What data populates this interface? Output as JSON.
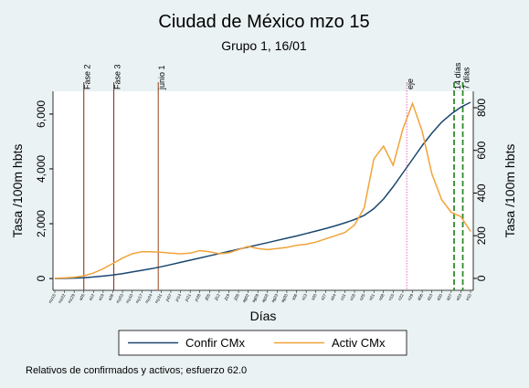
{
  "chart_data": {
    "type": "line",
    "title": "Ciudad de México mzo 15",
    "subtitle": "Grupo 1,  16/01",
    "xlabel": "Días",
    "ylabel": "Tasa /100m hbts",
    "y2label": "Tasa /100m hbts",
    "note": "Relativos de confirmados y activos; esfuerzo 62.0",
    "categories": [
      "mz15",
      "mz22",
      "mz29",
      "a05",
      "a12",
      "a19",
      "a26",
      "my03",
      "my10",
      "my17",
      "my24",
      "my31",
      "jn07",
      "jn14",
      "jn21",
      "jn28",
      "jl05",
      "jl12",
      "jl19",
      "jl26",
      "ag02",
      "ag09",
      "ag16",
      "ag23",
      "ag30",
      "s06",
      "s13",
      "s20",
      "s27",
      "o04",
      "o11",
      "o18",
      "o25",
      "n01",
      "n08",
      "n15",
      "n22",
      "n29",
      "d06",
      "d13",
      "d20",
      "d27",
      "e03",
      "e10"
    ],
    "series": [
      {
        "name": "Confir CMx",
        "color": "#1a476f",
        "axis": "y",
        "values": [
          0,
          5,
          15,
          30,
          55,
          90,
          130,
          180,
          240,
          300,
          360,
          430,
          510,
          590,
          670,
          750,
          830,
          910,
          990,
          1070,
          1150,
          1230,
          1310,
          1390,
          1470,
          1550,
          1640,
          1730,
          1820,
          1920,
          2030,
          2150,
          2300,
          2550,
          2900,
          3350,
          3850,
          4350,
          4850,
          5300,
          5700,
          6000,
          6250,
          6430
        ]
      },
      {
        "name": "Activ CMx",
        "color": "#f2a33a",
        "axis": "y2",
        "values": [
          0,
          2,
          5,
          12,
          25,
          45,
          70,
          95,
          115,
          125,
          125,
          122,
          118,
          115,
          118,
          130,
          125,
          115,
          120,
          135,
          150,
          140,
          135,
          140,
          145,
          155,
          160,
          170,
          185,
          200,
          215,
          250,
          330,
          560,
          620,
          530,
          700,
          820,
          690,
          490,
          370,
          310,
          290,
          220
        ]
      }
    ],
    "annotations": [
      {
        "text": "Fase 2",
        "x": 3.0,
        "color": "#8b3a1a",
        "style": "solid"
      },
      {
        "text": "Fase 3",
        "x": 6.1,
        "color": "#8b3a1a",
        "style": "solid"
      },
      {
        "text": "junio 1",
        "x": 10.7,
        "color": "#a0522d",
        "style": "solid"
      },
      {
        "text": "eje",
        "x": 36.4,
        "color": "#e377c2",
        "style": "dotted"
      },
      {
        "text": "14 días",
        "x": 41.3,
        "color": "#2e8b2e",
        "style": "dashed"
      },
      {
        "text": "7 días",
        "x": 42.2,
        "color": "#2e8b2e",
        "style": "dashed"
      }
    ],
    "ylim": [
      -430,
      6830
    ],
    "yticks": [
      0,
      {
        "value": 2000,
        "label": "2,000"
      },
      {
        "value": 4000,
        "label": "4,000"
      },
      {
        "value": 6000,
        "label": "6,000"
      }
    ],
    "y2lim": [
      -56,
      877
    ],
    "y2ticks": [
      0,
      200,
      400,
      600,
      800
    ],
    "grid": false,
    "legend": "bottom"
  }
}
